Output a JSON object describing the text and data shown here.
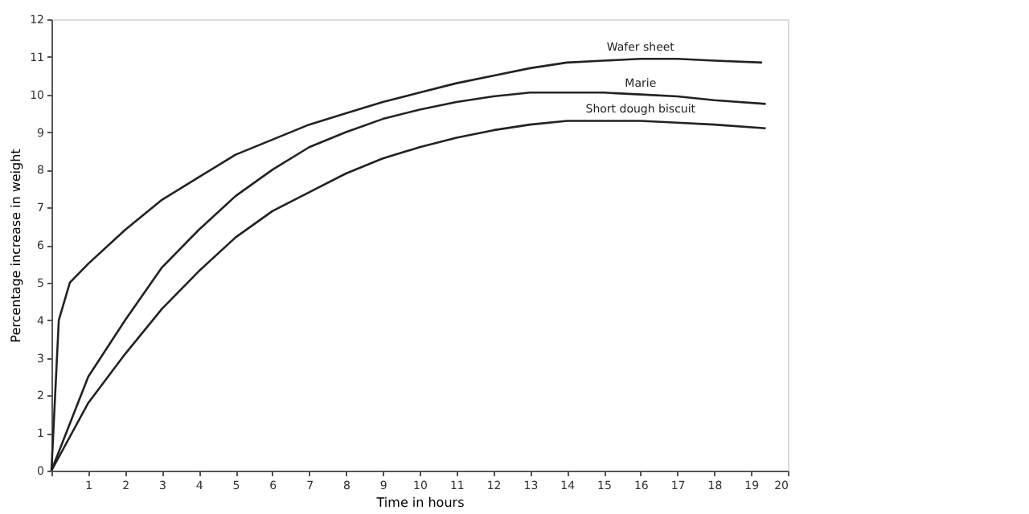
{
  "chart_data": {
    "type": "line",
    "xlabel": "Time in hours",
    "ylabel": "Percentage increase in weight",
    "xlim": [
      0,
      20
    ],
    "ylim": [
      0,
      12
    ],
    "xticks": [
      {
        "value": 0,
        "label": null
      },
      1,
      2,
      3,
      4,
      5,
      6,
      7,
      8,
      9,
      10,
      11,
      12,
      13,
      14,
      15,
      16,
      17,
      18,
      19,
      20
    ],
    "yticks": [
      0,
      1,
      2,
      3,
      4,
      5,
      6,
      7,
      8,
      9,
      10,
      11,
      12
    ],
    "grid": false,
    "marker": "none",
    "line_style": "solid",
    "series": [
      {
        "name": "Wafer sheet",
        "color": "#222222",
        "x": [
          0,
          0.2,
          0.5,
          1,
          2,
          3,
          4,
          5,
          6,
          7,
          8,
          9,
          10,
          11,
          12,
          13,
          14,
          15,
          16,
          17,
          18,
          19.3
        ],
        "values": [
          0,
          4.0,
          5.0,
          5.5,
          6.4,
          7.2,
          7.8,
          8.4,
          8.8,
          9.2,
          9.5,
          9.8,
          10.05,
          10.3,
          10.5,
          10.7,
          10.85,
          10.9,
          10.95,
          10.95,
          10.9,
          10.85
        ]
      },
      {
        "name": "Marie",
        "color": "#222222",
        "x": [
          0,
          1,
          2,
          3,
          4,
          5,
          6,
          7,
          8,
          9,
          10,
          11,
          12,
          13,
          14,
          15,
          16,
          17,
          18,
          19.4
        ],
        "values": [
          0,
          2.5,
          4.0,
          5.4,
          6.4,
          7.3,
          8.0,
          8.6,
          9.0,
          9.35,
          9.6,
          9.8,
          9.95,
          10.05,
          10.05,
          10.05,
          10.0,
          9.95,
          9.85,
          9.75
        ]
      },
      {
        "name": "Short dough biscuit",
        "color": "#222222",
        "x": [
          0,
          1,
          2,
          3,
          4,
          5,
          6,
          7,
          8,
          9,
          10,
          11,
          12,
          13,
          14,
          15,
          16,
          17,
          18,
          19.4
        ],
        "values": [
          0,
          1.8,
          3.1,
          4.3,
          5.3,
          6.2,
          6.9,
          7.4,
          7.9,
          8.3,
          8.6,
          8.85,
          9.05,
          9.2,
          9.3,
          9.3,
          9.3,
          9.25,
          9.2,
          9.1
        ]
      }
    ]
  }
}
